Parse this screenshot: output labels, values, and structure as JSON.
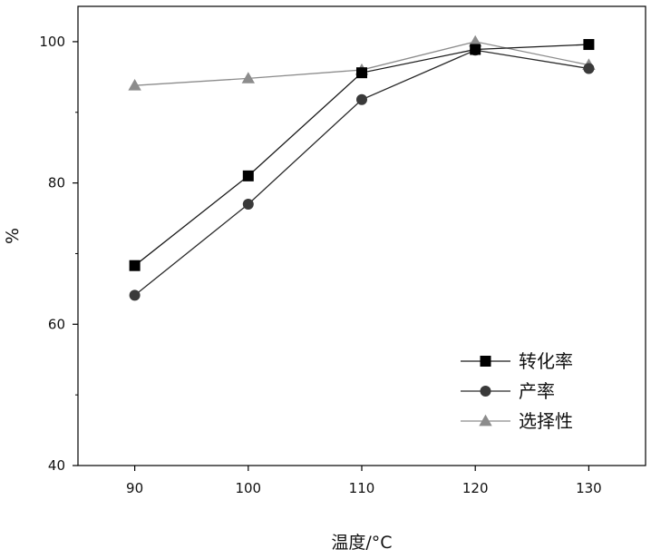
{
  "chart_data": {
    "type": "line",
    "xlabel": "温度/°C",
    "ylabel": "%",
    "x": [
      90,
      100,
      110,
      120,
      130
    ],
    "xticks": [
      "90",
      "100",
      "110",
      "120",
      "130"
    ],
    "xlim": [
      85,
      135
    ],
    "ylim": [
      40,
      105
    ],
    "yticks": [
      "40",
      "60",
      "80",
      "100"
    ],
    "grid": false,
    "legend_position": "bottom-right",
    "series": [
      {
        "name": "转化率",
        "marker": "square",
        "color": "#000000",
        "line_color": "#1a1a1a",
        "values": [
          68.3,
          81.0,
          95.6,
          98.9,
          99.6
        ]
      },
      {
        "name": "产率",
        "marker": "circle",
        "color": "#3a3a3a",
        "line_color": "#2a2a2a",
        "values": [
          64.1,
          77.0,
          91.8,
          98.8,
          96.2
        ]
      },
      {
        "name": "选择性",
        "marker": "triangle",
        "color": "#8c8c8c",
        "line_color": "#8c8c8c",
        "values": [
          93.8,
          94.8,
          96.0,
          100.0,
          96.7
        ]
      }
    ]
  }
}
